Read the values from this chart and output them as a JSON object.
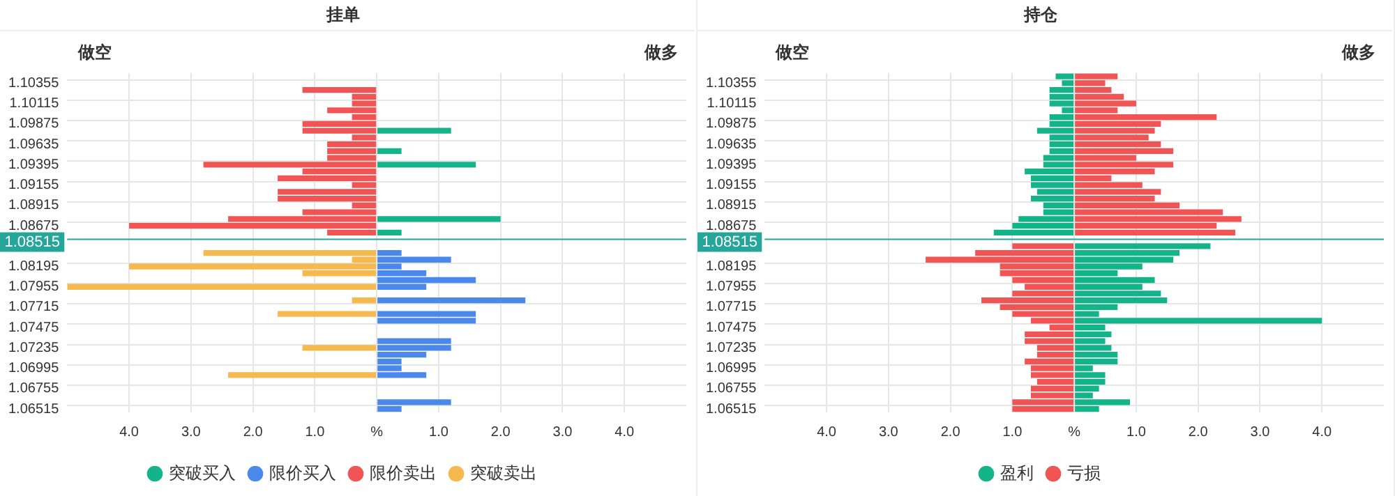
{
  "chart_data": [
    {
      "type": "bar",
      "orientation": "horizontal",
      "stacked": true,
      "title": "挂单",
      "annotations": [
        "做空",
        "做多"
      ],
      "categories": [
        null,
        "1.10355",
        null,
        null,
        "1.10115",
        null,
        null,
        "1.09875",
        null,
        null,
        "1.09635",
        null,
        null,
        "1.09395",
        null,
        null,
        "1.09155",
        null,
        null,
        "1.08915",
        null,
        null,
        "1.08675",
        null,
        "1.08515",
        null,
        null,
        null,
        "1.08195",
        null,
        null,
        "1.07955",
        null,
        null,
        "1.07715",
        null,
        null,
        "1.07475",
        null,
        null,
        "1.07235",
        null,
        null,
        "1.06995",
        null,
        null,
        "1.06755",
        null,
        null,
        "1.06515"
      ],
      "series": [
        {
          "name": "突破买入",
          "color": "#14b48a",
          "values": [
            null,
            null,
            null,
            null,
            null,
            null,
            null,
            null,
            1.2,
            null,
            null,
            0.4,
            null,
            1.6,
            null,
            null,
            null,
            null,
            null,
            null,
            null,
            2.0,
            null,
            0.4,
            null,
            null,
            null,
            null,
            null,
            null,
            null,
            null,
            null,
            null,
            null,
            null,
            null,
            null,
            null,
            null,
            null,
            null,
            null,
            null,
            null,
            null,
            null,
            null,
            null,
            null
          ]
        },
        {
          "name": "限价买入",
          "color": "#4a88ec",
          "values": [
            null,
            null,
            null,
            null,
            null,
            null,
            null,
            null,
            null,
            null,
            null,
            null,
            null,
            null,
            null,
            null,
            null,
            null,
            null,
            null,
            null,
            null,
            null,
            null,
            null,
            null,
            0.4,
            1.2,
            0.4,
            0.8,
            1.6,
            0.8,
            null,
            2.4,
            null,
            1.6,
            1.6,
            null,
            null,
            1.2,
            1.2,
            0.8,
            0.4,
            0.4,
            0.8,
            null,
            null,
            null,
            1.2,
            0.4
          ]
        },
        {
          "name": "限价卖出",
          "color": "#f05454",
          "values": [
            null,
            null,
            -1.2,
            -0.4,
            -0.4,
            -0.8,
            -0.4,
            -1.2,
            -1.2,
            -0.4,
            -0.8,
            -0.8,
            -0.8,
            -2.8,
            -1.2,
            -1.6,
            -0.4,
            -1.6,
            -1.6,
            -0.4,
            -1.2,
            -2.4,
            -4.0,
            -0.8,
            null,
            null,
            null,
            null,
            null,
            null,
            null,
            null,
            null,
            null,
            null,
            null,
            null,
            null,
            null,
            null,
            null,
            null,
            null,
            null,
            null,
            null,
            null,
            null,
            null,
            null
          ]
        },
        {
          "name": "突破卖出",
          "color": "#f5b94e",
          "values": [
            null,
            null,
            null,
            null,
            null,
            null,
            null,
            null,
            null,
            null,
            null,
            null,
            null,
            null,
            null,
            null,
            null,
            null,
            null,
            null,
            null,
            null,
            null,
            null,
            null,
            null,
            -2.8,
            -0.4,
            -4.0,
            -1.2,
            null,
            -5.0,
            null,
            -0.4,
            null,
            -1.6,
            null,
            null,
            null,
            null,
            -1.2,
            null,
            null,
            null,
            -2.4,
            null,
            null,
            null,
            null,
            null
          ]
        }
      ],
      "xlim": [
        -5,
        5
      ],
      "xticks": [
        {
          "value": -4,
          "label": "4.0"
        },
        {
          "value": -3,
          "label": "3.0"
        },
        {
          "value": -2,
          "label": "2.0"
        },
        {
          "value": -1,
          "label": "1.0"
        },
        {
          "value": 0,
          "label": "%"
        },
        {
          "value": 1,
          "label": "1.0"
        },
        {
          "value": 2,
          "label": "2.0"
        },
        {
          "value": 3,
          "label": "3.0"
        },
        {
          "value": 4,
          "label": "4.0"
        }
      ],
      "ref_lines": [
        {
          "axis": "y",
          "value": "1.08515",
          "label": "1.08515",
          "color": "#26a69a"
        }
      ],
      "grid": true,
      "legend": "bottom"
    },
    {
      "type": "bar",
      "orientation": "horizontal",
      "stacked": true,
      "title": "持仓",
      "annotations": [
        "做空",
        "做多"
      ],
      "categories": [
        null,
        "1.10355",
        null,
        null,
        "1.10115",
        null,
        null,
        "1.09875",
        null,
        null,
        "1.09635",
        null,
        null,
        "1.09395",
        null,
        null,
        "1.09155",
        null,
        null,
        "1.08915",
        null,
        null,
        "1.08675",
        null,
        "1.08515",
        null,
        null,
        null,
        "1.08195",
        null,
        null,
        "1.07955",
        null,
        null,
        "1.07715",
        null,
        null,
        "1.07475",
        null,
        null,
        "1.07235",
        null,
        null,
        "1.06995",
        null,
        null,
        "1.06755",
        null,
        null,
        "1.06515"
      ],
      "series": [
        {
          "name": "盈利",
          "color": "#14b48a",
          "values": [
            -0.3,
            -0.2,
            -0.4,
            -0.4,
            -0.4,
            -0.2,
            -0.4,
            -0.4,
            -0.6,
            -0.4,
            -0.4,
            -0.4,
            -0.5,
            -0.5,
            -0.8,
            -0.7,
            -0.7,
            -0.6,
            -0.7,
            -0.5,
            -0.5,
            -0.9,
            -1.0,
            -1.3,
            null,
            2.2,
            1.7,
            1.6,
            1.1,
            0.7,
            1.3,
            1.1,
            1.4,
            1.5,
            0.7,
            0.4,
            4.0,
            0.5,
            0.6,
            0.5,
            0.6,
            0.7,
            0.7,
            0.3,
            0.5,
            0.5,
            0.4,
            0.3,
            0.9,
            0.4
          ]
        },
        {
          "name": "亏损",
          "color": "#f05454",
          "values": [
            0.7,
            0.5,
            0.6,
            0.8,
            1.0,
            0.7,
            2.3,
            1.4,
            1.3,
            1.2,
            1.4,
            1.6,
            1.0,
            1.6,
            1.3,
            0.6,
            1.1,
            1.4,
            1.3,
            1.7,
            2.4,
            2.7,
            2.3,
            2.6,
            null,
            -1.0,
            -1.6,
            -2.4,
            -1.2,
            -1.2,
            -1.0,
            -0.8,
            -1.0,
            -1.5,
            -1.2,
            -1.0,
            -0.7,
            -0.4,
            -0.8,
            -0.8,
            -0.6,
            -0.6,
            -0.8,
            -0.7,
            -0.7,
            -0.6,
            -0.7,
            -0.7,
            -1.0,
            -1.0
          ]
        }
      ],
      "xlim": [
        -5,
        5
      ],
      "xticks": [
        {
          "value": -4,
          "label": "4.0"
        },
        {
          "value": -3,
          "label": "3.0"
        },
        {
          "value": -2,
          "label": "2.0"
        },
        {
          "value": -1,
          "label": "1.0"
        },
        {
          "value": 0,
          "label": "%"
        },
        {
          "value": 1,
          "label": "1.0"
        },
        {
          "value": 2,
          "label": "2.0"
        },
        {
          "value": 3,
          "label": "3.0"
        },
        {
          "value": 4,
          "label": "4.0"
        }
      ],
      "ref_lines": [
        {
          "axis": "y",
          "value": "1.08515",
          "label": "1.08515",
          "color": "#26a69a"
        }
      ],
      "grid": true,
      "legend": "bottom"
    }
  ]
}
